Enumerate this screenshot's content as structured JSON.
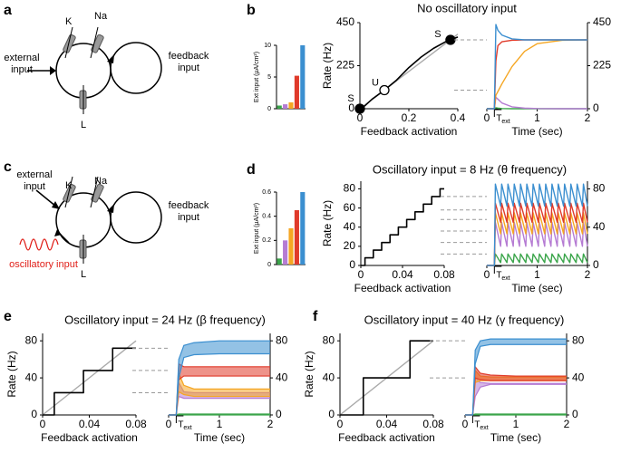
{
  "panels": [
    "a",
    "b",
    "c",
    "d",
    "e",
    "f"
  ],
  "diagrams": {
    "a": {
      "k": "K",
      "na": "Na",
      "l": "L",
      "external": [
        "external",
        "input"
      ],
      "feedback": [
        "feedback",
        "input"
      ]
    },
    "c": {
      "k": "K",
      "na": "Na",
      "l": "L",
      "external": [
        "external",
        "input"
      ],
      "feedback": [
        "feedback",
        "input"
      ],
      "oscillatory": "oscillatory input"
    }
  },
  "chart_data": [
    {
      "type": "bar",
      "y_label": "Ext input (µA/cm²)",
      "values": [
        0.5,
        0.7,
        1,
        5.2,
        10
      ],
      "colors": [
        "#3aa54a",
        "#b57bd3",
        "#f5a623",
        "#e03a2a",
        "#3b8fd0"
      ],
      "ylim": [
        0,
        10
      ],
      "yticks": [
        0,
        5,
        10
      ]
    },
    {
      "type": "line",
      "title": "No oscillatory input",
      "x_label": "Feedback activation",
      "y_label": "Rate (Hz)",
      "xlim": [
        0,
        0.4
      ],
      "ylim": [
        0,
        450
      ],
      "xticks": [
        0,
        0.2,
        0.4
      ],
      "yticks": [
        0,
        225,
        450
      ],
      "series": [
        {
          "color": "#aaaaaa",
          "x": [
            0,
            0.4
          ],
          "values": [
            0,
            390
          ]
        },
        {
          "color": "#000000",
          "x": [
            0,
            0.02,
            0.05,
            0.1,
            0.15,
            0.2,
            0.25,
            0.3,
            0.35,
            0.4
          ],
          "values": [
            0,
            15,
            50,
            97,
            150,
            215,
            270,
            315,
            350,
            375
          ]
        }
      ],
      "fixed_points": {
        "x": [
          0,
          0.1,
          0.37
        ],
        "values": [
          0,
          97,
          360
        ],
        "labels": [
          "S",
          "U",
          "S"
        ],
        "stable": [
          true,
          false,
          true
        ]
      },
      "reference_lines": [
        360,
        97
      ]
    },
    {
      "type": "line",
      "x_label": "Time (sec)",
      "xlim": [
        0,
        2
      ],
      "ylim": [
        0,
        450
      ],
      "xticks": [
        0,
        1,
        2
      ],
      "yticks": [
        0,
        225,
        450
      ],
      "onset": {
        "x": 0.15,
        "label": "T",
        "sub": "ext"
      },
      "x": [
        0,
        0.15,
        0.18,
        0.22,
        0.3,
        0.5,
        0.75,
        1,
        1.5,
        2
      ],
      "series": [
        {
          "color": "#3aa54a",
          "values": [
            0,
            0,
            5,
            3,
            1,
            0,
            0,
            0,
            0,
            0
          ]
        },
        {
          "color": "#b57bd3",
          "values": [
            0,
            0,
            60,
            50,
            30,
            10,
            3,
            1,
            0,
            0
          ]
        },
        {
          "color": "#f5a623",
          "values": [
            0,
            0,
            70,
            90,
            130,
            220,
            300,
            340,
            358,
            360
          ]
        },
        {
          "color": "#e03a2a",
          "values": [
            0,
            0,
            250,
            330,
            350,
            358,
            360,
            360,
            360,
            360
          ]
        },
        {
          "color": "#3b8fd0",
          "values": [
            0,
            0,
            440,
            410,
            385,
            365,
            360,
            360,
            360,
            360
          ]
        }
      ]
    },
    {
      "type": "bar",
      "y_label": "Ext input (µA/cm²)",
      "values": [
        0.05,
        0.2,
        0.3,
        0.45,
        0.6
      ],
      "colors": [
        "#3aa54a",
        "#b57bd3",
        "#f5a623",
        "#e03a2a",
        "#3b8fd0"
      ],
      "ylim": [
        0,
        0.6
      ],
      "yticks": [
        0,
        0.2,
        0.4,
        0.6
      ]
    },
    {
      "type": "line",
      "title": "Oscillatory input = 8 Hz (θ frequency)",
      "x_label": "Feedback activation",
      "y_label": "Rate (Hz)",
      "xlim": [
        0,
        0.08
      ],
      "ylim": [
        0,
        88
      ],
      "xticks": [
        0,
        0.04,
        0.08
      ],
      "yticks": [
        0,
        20,
        40,
        60,
        80
      ],
      "series": [
        {
          "color": "#000000",
          "x": [
            0,
            0.004,
            0.004,
            0.012,
            0.012,
            0.02,
            0.02,
            0.028,
            0.028,
            0.036,
            0.036,
            0.044,
            0.044,
            0.052,
            0.052,
            0.06,
            0.06,
            0.068,
            0.068,
            0.076,
            0.076,
            0.08
          ],
          "values": [
            0,
            0,
            8,
            8,
            16,
            16,
            24,
            24,
            32,
            32,
            40,
            40,
            48,
            48,
            56,
            56,
            64,
            64,
            72,
            72,
            80,
            80
          ]
        }
      ],
      "reference_lines": [
        72,
        58,
        48,
        36,
        24,
        12
      ]
    },
    {
      "type": "line",
      "x_label": "Time (sec)",
      "xlim": [
        0,
        2
      ],
      "ylim": [
        0,
        88
      ],
      "xticks": [
        0,
        1,
        2
      ],
      "yticks": [
        0,
        40,
        80
      ],
      "onset": {
        "x": 0.15,
        "label": "T",
        "sub": "ext"
      },
      "x": [
        0,
        0.15,
        0.17,
        0.275,
        0.295,
        0.4,
        0.42,
        0.525,
        0.545,
        0.65,
        0.67,
        0.775,
        0.795,
        0.9,
        0.92,
        1.025,
        1.045,
        1.15,
        1.17,
        1.275,
        1.295,
        1.4,
        1.42,
        1.525,
        1.545,
        1.65,
        1.67,
        1.775,
        1.795,
        1.9,
        1.92,
        2
      ],
      "series": [
        {
          "color": "#3aa54a",
          "values": [
            0,
            0,
            12,
            3,
            12,
            3,
            12,
            3,
            12,
            3,
            12,
            3,
            12,
            3,
            12,
            3,
            12,
            3,
            12,
            3,
            12,
            3,
            12,
            3,
            12,
            3,
            12,
            3,
            12,
            3,
            12,
            3
          ]
        },
        {
          "color": "#b57bd3",
          "values": [
            0,
            0,
            45,
            20,
            45,
            20,
            45,
            20,
            45,
            20,
            45,
            20,
            45,
            20,
            45,
            20,
            45,
            20,
            45,
            20,
            45,
            20,
            45,
            20,
            45,
            20,
            45,
            20,
            45,
            20,
            45,
            20
          ]
        },
        {
          "color": "#f5a623",
          "values": [
            0,
            0,
            55,
            33,
            55,
            33,
            55,
            33,
            55,
            33,
            55,
            33,
            55,
            33,
            55,
            33,
            55,
            33,
            55,
            33,
            55,
            33,
            55,
            33,
            55,
            33,
            55,
            33,
            55,
            33,
            55,
            33
          ]
        },
        {
          "color": "#e03a2a",
          "values": [
            0,
            0,
            65,
            45,
            65,
            45,
            65,
            45,
            65,
            45,
            65,
            45,
            65,
            45,
            65,
            45,
            65,
            45,
            65,
            45,
            65,
            45,
            65,
            45,
            65,
            45,
            65,
            45,
            65,
            45,
            65,
            45
          ]
        },
        {
          "color": "#3b8fd0",
          "values": [
            0,
            0,
            85,
            62,
            85,
            62,
            85,
            62,
            85,
            62,
            85,
            62,
            85,
            62,
            85,
            62,
            85,
            62,
            85,
            62,
            85,
            62,
            85,
            62,
            85,
            62,
            85,
            62,
            85,
            62,
            85,
            62
          ]
        }
      ]
    },
    {
      "type": "line",
      "title": "Oscillatory input = 24 Hz (β frequency)",
      "x_label": "Feedback activation",
      "y_label": "Rate (Hz)",
      "xlim": [
        0,
        0.08
      ],
      "ylim": [
        0,
        88
      ],
      "xticks": [
        0,
        0.04,
        0.08
      ],
      "yticks": [
        0,
        40,
        80
      ],
      "series": [
        {
          "color": "#aaaaaa",
          "x": [
            0,
            0.08
          ],
          "values": [
            0,
            80
          ]
        },
        {
          "color": "#000000",
          "x": [
            0,
            0.01,
            0.01,
            0.035,
            0.035,
            0.06,
            0.06,
            0.08
          ],
          "values": [
            0,
            0,
            24,
            24,
            48,
            48,
            72,
            72
          ]
        }
      ],
      "reference_lines": [
        72,
        48,
        24
      ]
    },
    {
      "type": "band",
      "x_label": "Time (sec)",
      "xlim": [
        0,
        2
      ],
      "ylim": [
        0,
        88
      ],
      "xticks": [
        0,
        1,
        2
      ],
      "yticks": [
        0,
        40,
        80
      ],
      "onset": {
        "x": 0.15,
        "label": "T",
        "sub": "ext"
      },
      "x": [
        0,
        0.15,
        0.2,
        0.3,
        0.5,
        1,
        1.5,
        2
      ],
      "series": [
        {
          "color": "#3aa54a",
          "upper": [
            0,
            0,
            1,
            1,
            1,
            1,
            1,
            1
          ],
          "lower": [
            0,
            0,
            0,
            0,
            0,
            0,
            0,
            0
          ]
        },
        {
          "color": "#b57bd3",
          "upper": [
            0,
            0,
            35,
            25,
            24,
            24,
            24,
            24
          ],
          "lower": [
            0,
            0,
            20,
            18,
            18,
            18,
            18,
            18
          ]
        },
        {
          "color": "#f5a623",
          "upper": [
            0,
            0,
            45,
            32,
            28,
            28,
            28,
            28
          ],
          "lower": [
            0,
            0,
            25,
            22,
            20,
            20,
            20,
            20
          ]
        },
        {
          "color": "#e03a2a",
          "upper": [
            0,
            0,
            55,
            52,
            52,
            52,
            52,
            52
          ],
          "lower": [
            0,
            0,
            38,
            42,
            42,
            42,
            42,
            42
          ]
        },
        {
          "color": "#3b8fd0",
          "upper": [
            0,
            0,
            60,
            75,
            78,
            80,
            80,
            80
          ],
          "lower": [
            0,
            0,
            40,
            62,
            65,
            66,
            66,
            66
          ]
        }
      ]
    },
    {
      "type": "line",
      "title": "Oscillatory input = 40 Hz (γ frequency)",
      "x_label": "Feedback activation",
      "y_label": "Rate (Hz)",
      "xlim": [
        0,
        0.08
      ],
      "ylim": [
        0,
        88
      ],
      "xticks": [
        0,
        0.04,
        0.08
      ],
      "yticks": [
        0,
        40,
        80
      ],
      "series": [
        {
          "color": "#aaaaaa",
          "x": [
            0,
            0.08
          ],
          "values": [
            0,
            80
          ]
        },
        {
          "color": "#000000",
          "x": [
            0,
            0.02,
            0.02,
            0.06,
            0.06,
            0.08
          ],
          "values": [
            0,
            0,
            40,
            40,
            80,
            80
          ]
        }
      ],
      "reference_lines": [
        80,
        40
      ]
    },
    {
      "type": "band",
      "x_label": "Time (sec)",
      "xlim": [
        0,
        2
      ],
      "ylim": [
        0,
        88
      ],
      "xticks": [
        0,
        1,
        2
      ],
      "yticks": [
        0,
        40,
        80
      ],
      "onset": {
        "x": 0.15,
        "label": "T",
        "sub": "ext"
      },
      "x": [
        0,
        0.15,
        0.2,
        0.3,
        0.5,
        1,
        1.5,
        2
      ],
      "series": [
        {
          "color": "#3aa54a",
          "upper": [
            0,
            0,
            1,
            1,
            1,
            1,
            1,
            1
          ],
          "lower": [
            0,
            0,
            0,
            0,
            0,
            0,
            0,
            0
          ]
        },
        {
          "color": "#b57bd3",
          "upper": [
            0,
            0,
            40,
            35,
            34,
            34,
            34,
            34
          ],
          "lower": [
            0,
            0,
            20,
            30,
            33,
            33,
            33,
            33
          ]
        },
        {
          "color": "#f5a623",
          "upper": [
            0,
            0,
            48,
            42,
            41,
            41,
            41,
            41
          ],
          "lower": [
            0,
            0,
            35,
            37,
            37,
            37,
            37,
            37
          ]
        },
        {
          "color": "#e03a2a",
          "upper": [
            0,
            0,
            52,
            45,
            43,
            42,
            42,
            42
          ],
          "lower": [
            0,
            0,
            40,
            38,
            37,
            37,
            37,
            37
          ]
        },
        {
          "color": "#3b8fd0",
          "upper": [
            0,
            0,
            70,
            80,
            82,
            82,
            82,
            82
          ],
          "lower": [
            0,
            0,
            55,
            74,
            76,
            76,
            76,
            76
          ]
        }
      ]
    }
  ]
}
